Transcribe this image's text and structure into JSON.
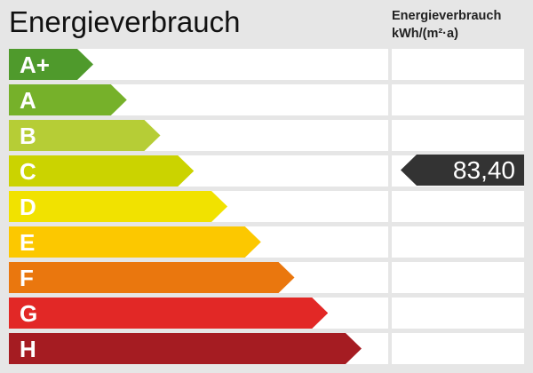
{
  "title": "Energieverbrauch",
  "column_header": {
    "line1": "Energieverbrauch",
    "line2": "kWh/(m²·a)"
  },
  "chart_data": {
    "type": "bar",
    "title": "Energieverbrauch",
    "categories": [
      "A+",
      "A",
      "B",
      "C",
      "D",
      "E",
      "F",
      "G",
      "H"
    ],
    "colors": [
      "#4f9a2c",
      "#76b12a",
      "#b6cd36",
      "#cbd300",
      "#f1e200",
      "#fcc800",
      "#ea770e",
      "#e22826",
      "#a51c22"
    ],
    "current_class": "C",
    "value": 83.4,
    "value_label": "83,40",
    "unit": "kWh/(m²·a)"
  }
}
